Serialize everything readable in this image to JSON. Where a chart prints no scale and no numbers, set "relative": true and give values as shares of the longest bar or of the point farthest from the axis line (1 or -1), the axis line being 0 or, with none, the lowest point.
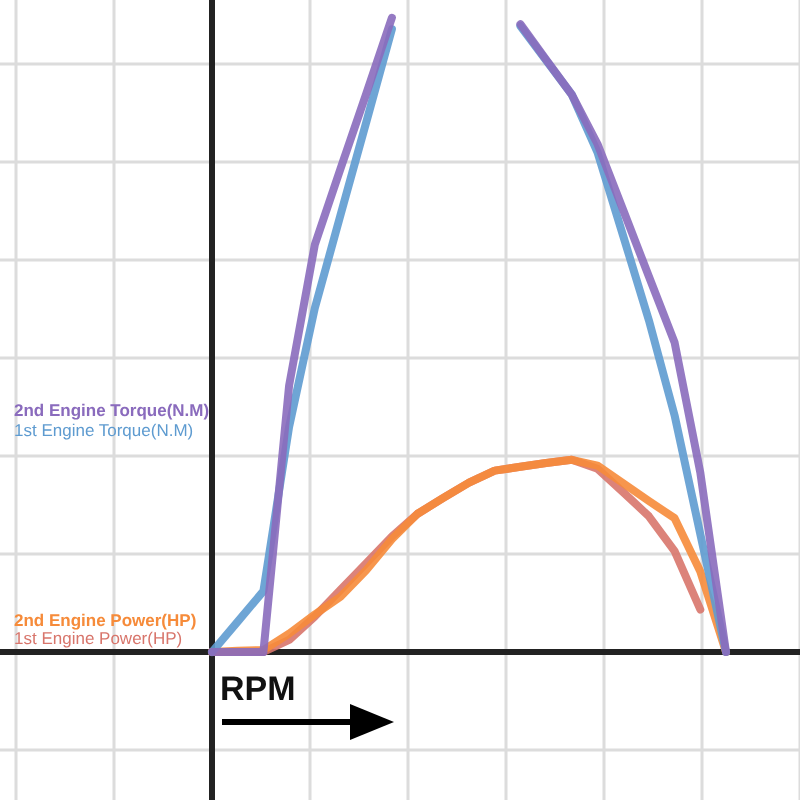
{
  "chart_data": {
    "type": "line",
    "xlabel": "RPM",
    "relative": true,
    "grid": true,
    "legend": "left",
    "marker": "none",
    "line_style": "solid",
    "categories": [
      null,
      null,
      null,
      null,
      null,
      null,
      null,
      null,
      null,
      null,
      null,
      null,
      null,
      null,
      null,
      null,
      null,
      null,
      null,
      null,
      null
    ],
    "series": [
      {
        "name": "2nd Engine Torque(N.M)",
        "color": "#8a6bbd",
        "values": [
          0,
          0,
          0,
          0.42,
          0.642,
          0.762,
          0.88,
          1,
          null,
          null,
          null,
          null,
          0.99,
          0.934,
          0.879,
          0.801,
          0.697,
          0.592,
          0.488,
          0.283,
          0
        ]
      },
      {
        "name": "1st Engine Torque(N.M)",
        "color": "#5e9bd0",
        "values": [
          0,
          0.048,
          0.096,
          0.355,
          0.542,
          0.689,
          0.835,
          0.982,
          null,
          null,
          null,
          null,
          0.987,
          0.933,
          0.879,
          0.788,
          0.656,
          0.523,
          0.373,
          0.186,
          0
        ]
      },
      {
        "name": "2nd Engine Power(HP)",
        "color": "#f68b3a",
        "values": [
          0,
          0.002,
          0.003,
          0.029,
          0.059,
          0.087,
          0.129,
          0.178,
          0.218,
          0.243,
          0.267,
          0.286,
          0.292,
          0.298,
          0.303,
          0.294,
          0.266,
          0.238,
          0.211,
          0.127,
          0
        ]
      },
      {
        "name": "1st Engine Power(HP)",
        "color": "#d8756b",
        "values": [
          0,
          0,
          0,
          0.019,
          0.056,
          0.098,
          0.14,
          0.182,
          0.218,
          0.243,
          0.267,
          0.286,
          0.292,
          0.298,
          0.303,
          0.289,
          0.252,
          0.214,
          0.159,
          0.067,
          null
        ]
      }
    ]
  }
}
